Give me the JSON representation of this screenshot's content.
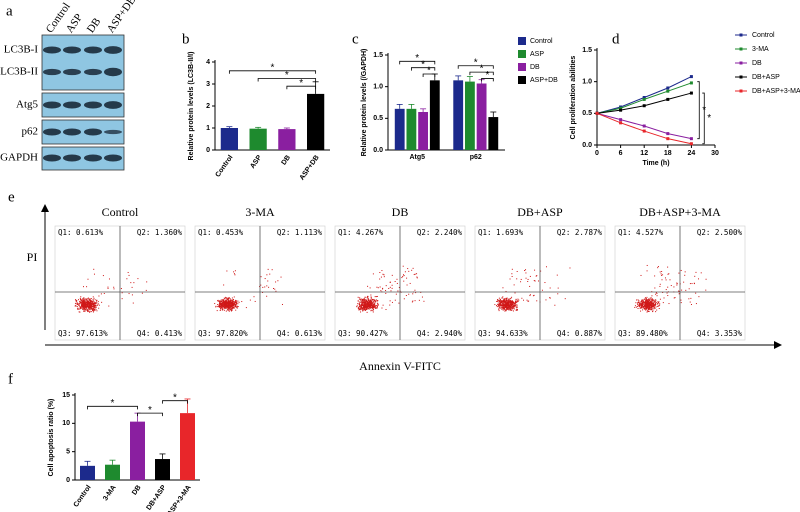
{
  "blot": {
    "label": "a",
    "lanes": [
      "Control",
      "ASP",
      "DB",
      "ASP+DB"
    ],
    "proteins": [
      "LC3B-I",
      "LC3B-II",
      "Atg5",
      "p62",
      "GAPDH"
    ]
  },
  "chart_data": [
    {
      "type": "bar",
      "panel": "b",
      "ylabel": "Relative protein levels (LC3B-II/I)",
      "categories": [
        "Control",
        "ASP",
        "DB",
        "ASP+DB"
      ],
      "values": [
        1.0,
        0.97,
        0.95,
        2.55
      ],
      "errors": [
        0.06,
        0.06,
        0.05,
        0.55
      ],
      "colors": [
        "#1c2a8c",
        "#1e8a2e",
        "#8a1fa0",
        "#000000"
      ],
      "ylim": [
        0,
        4
      ],
      "yticks": [
        0,
        1,
        2,
        3,
        4
      ],
      "annotations": [
        "*",
        "*",
        "*"
      ]
    },
    {
      "type": "grouped-bar",
      "panel": "c",
      "ylabel": "Relative protein levels (/GAPDH)",
      "categories": [
        "Atg5",
        "p62"
      ],
      "series": [
        {
          "name": "Control",
          "color": "#1c2a8c",
          "values": [
            0.65,
            1.1
          ],
          "errors": [
            0.07,
            0.07
          ]
        },
        {
          "name": "ASP",
          "color": "#1e8a2e",
          "values": [
            0.65,
            1.08
          ],
          "errors": [
            0.07,
            0.08
          ]
        },
        {
          "name": "DB",
          "color": "#8a1fa0",
          "values": [
            0.6,
            1.05
          ],
          "errors": [
            0.05,
            0.06
          ]
        },
        {
          "name": "ASP+DB",
          "color": "#000000",
          "values": [
            1.1,
            0.52
          ],
          "errors": [
            0.1,
            0.08
          ]
        }
      ],
      "ylim": [
        0,
        1.5
      ],
      "yticks": [
        {
          "value": 0,
          "label": "0.0"
        },
        {
          "value": 0.5,
          "label": "0.5"
        },
        {
          "value": 1,
          "label": "1.0"
        },
        {
          "value": 1.5,
          "label": "1.5"
        }
      ],
      "annotations": [
        "*",
        "*",
        "*",
        "*",
        "*",
        "*"
      ]
    },
    {
      "type": "line",
      "panel": "d",
      "xlabel": "Time (h)",
      "ylabel": "Cell proliferation abilities",
      "x": [
        0,
        6,
        12,
        18,
        24
      ],
      "series": [
        {
          "name": "Control",
          "color": "#1c2a8c",
          "values": [
            0.5,
            0.6,
            0.75,
            0.9,
            1.08
          ]
        },
        {
          "name": "3-MA",
          "color": "#1e8a2e",
          "values": [
            0.5,
            0.58,
            0.72,
            0.85,
            0.98
          ]
        },
        {
          "name": "DB",
          "color": "#8a1fa0",
          "values": [
            0.5,
            0.4,
            0.3,
            0.18,
            0.1
          ]
        },
        {
          "name": "DB+ASP",
          "color": "#000000",
          "values": [
            0.5,
            0.55,
            0.62,
            0.72,
            0.82
          ]
        },
        {
          "name": "DB+ASP+3-MA",
          "color": "#e8262a",
          "values": [
            0.5,
            0.35,
            0.22,
            0.1,
            0.02
          ]
        }
      ],
      "xlim": [
        0,
        30
      ],
      "xticks": [
        0,
        6,
        12,
        18,
        24,
        30
      ],
      "ylim": [
        0,
        1.5
      ],
      "yticks": [
        {
          "value": 0,
          "label": "0.0"
        },
        {
          "value": 0.5,
          "label": "0.5"
        },
        {
          "value": 1,
          "label": "1.0"
        },
        {
          "value": 1.5,
          "label": "1.5"
        }
      ],
      "annotations": [
        "*",
        "*"
      ]
    },
    {
      "type": "bar",
      "panel": "f",
      "ylabel": "Cell apoptosis ratio (%)",
      "categories": [
        "Control",
        "3-MA",
        "DB",
        "DB+ASP",
        "DB+ASP+3-MA"
      ],
      "values": [
        2.5,
        2.7,
        10.3,
        3.7,
        11.8
      ],
      "errors": [
        0.8,
        0.8,
        1.5,
        0.9,
        2.5
      ],
      "colors": [
        "#1c2a8c",
        "#1e8a2e",
        "#8a1fa0",
        "#000000",
        "#e8262a"
      ],
      "ylim": [
        0,
        15
      ],
      "yticks": [
        0,
        5,
        10,
        15
      ],
      "annotations": [
        "*",
        "*",
        "*"
      ]
    }
  ],
  "flow": {
    "label": "e",
    "ylabel": "PI",
    "xlabel": "Annexin V-FITC",
    "panels": [
      {
        "title": "Control",
        "quadrants": [
          "Q1: 0.613%",
          "Q2: 1.360%",
          "Q3: 97.613%",
          "Q4: 0.413%"
        ]
      },
      {
        "title": "3-MA",
        "quadrants": [
          "Q1: 0.453%",
          "Q2: 1.113%",
          "Q3: 97.820%",
          "Q4: 0.613%"
        ]
      },
      {
        "title": "DB",
        "quadrants": [
          "Q1: 4.267%",
          "Q2: 2.240%",
          "Q3: 90.427%",
          "Q4: 2.940%"
        ]
      },
      {
        "title": "DB+ASP",
        "quadrants": [
          "Q1: 1.693%",
          "Q2: 2.787%",
          "Q3: 94.633%",
          "Q4: 0.887%"
        ]
      },
      {
        "title": "DB+ASP+3-MA",
        "quadrants": [
          "Q1: 4.527%",
          "Q2: 2.500%",
          "Q3: 89.480%",
          "Q4: 3.353%"
        ]
      }
    ]
  }
}
